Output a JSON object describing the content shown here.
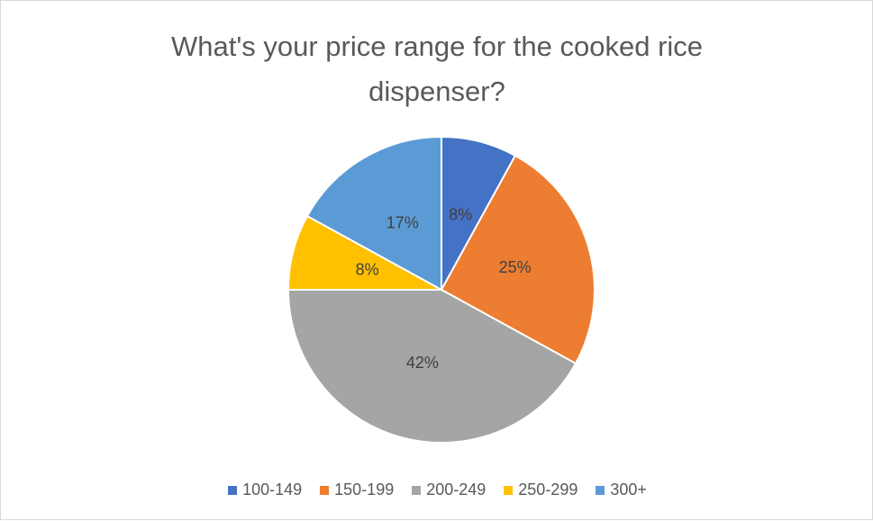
{
  "chart_data": {
    "type": "pie",
    "title": "What's your price range for the cooked rice dispenser?",
    "categories": [
      "100-149",
      "150-199",
      "200-249",
      "250-299",
      "300+"
    ],
    "values": [
      8,
      25,
      42,
      8,
      17
    ],
    "value_labels": [
      "8%",
      "25%",
      "42%",
      "8%",
      "17%"
    ],
    "colors": [
      "#4472c4",
      "#ed7d31",
      "#a5a5a5",
      "#ffc000",
      "#5b9bd5"
    ],
    "legend": "bottom"
  }
}
